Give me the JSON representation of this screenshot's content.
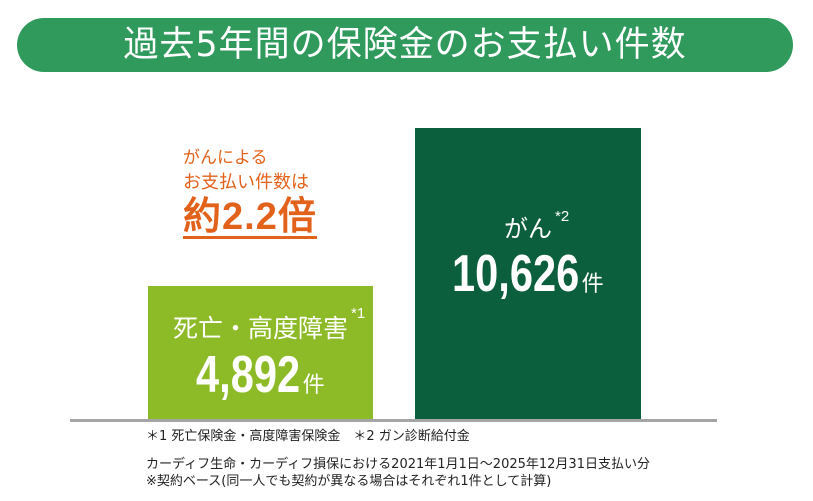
{
  "theme": {
    "banner_color": "#2f9a5c",
    "accent_color": "#e2621b",
    "axis_color": "#a5a5a5",
    "background": "#ffffff"
  },
  "callout": {
    "line1": "がんによる",
    "line2": "お支払い件数は",
    "highlight": "約2.2倍"
  },
  "chart_data": {
    "type": "bar",
    "title": "過去5年間の保険金のお支払い件数",
    "categories": [
      "死亡・高度障害",
      "がん"
    ],
    "category_marks": [
      "*1",
      "*2"
    ],
    "values": [
      4892,
      10626
    ],
    "value_labels": [
      "4,892",
      "10,626"
    ],
    "unit": "件",
    "colors": [
      "#8dbb28",
      "#0c5f3d"
    ],
    "xlabel": "",
    "ylabel": "",
    "grid": false
  },
  "footnotes": {
    "marks": "＊1 死亡保険金・高度障害保険金　＊2 ガン診断給付金",
    "source": "カーディフ生命・カーディフ損保における2021年1月1日～2025年12月31日支払い分",
    "basis": "※契約ベース(同一人でも契約が異なる場合はそれぞれ1件として計算)"
  }
}
